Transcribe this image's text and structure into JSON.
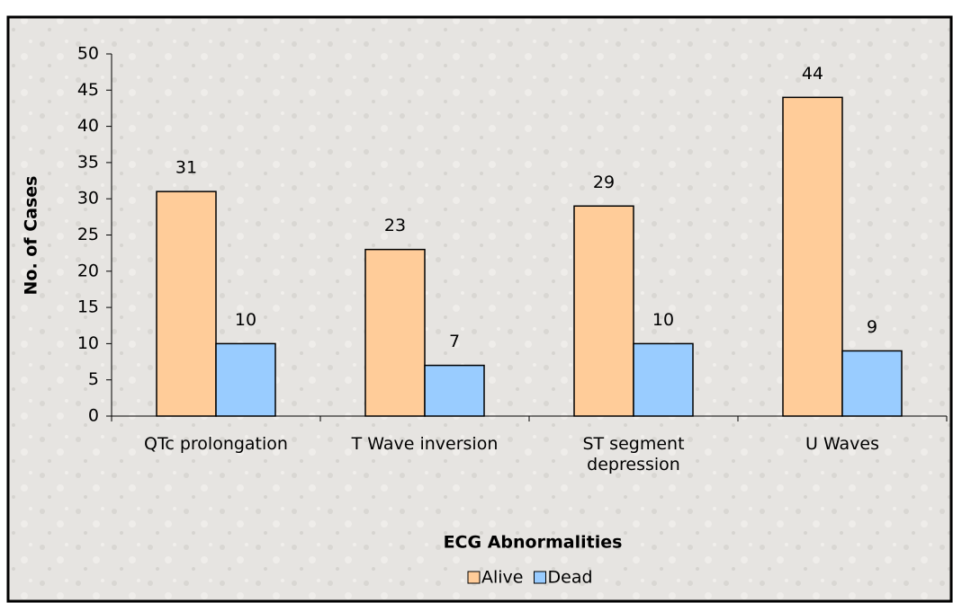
{
  "chart_data": {
    "type": "bar",
    "x_label": "ECG Abnormalities",
    "y_label": "No. of Cases",
    "categories": [
      "QTc prolongation",
      "T Wave inversion",
      "ST segment depression",
      "U Waves"
    ],
    "series": [
      {
        "name": "Alive",
        "color": "#ffcc99",
        "values": [
          31,
          23,
          29,
          44
        ]
      },
      {
        "name": "Dead",
        "color": "#99ccff",
        "values": [
          10,
          7,
          10,
          9
        ]
      }
    ],
    "ylim": [
      0,
      50
    ],
    "yticks": [
      0,
      5,
      10,
      15,
      20,
      25,
      30,
      35,
      40,
      45,
      50
    ],
    "legend": "bottom"
  }
}
